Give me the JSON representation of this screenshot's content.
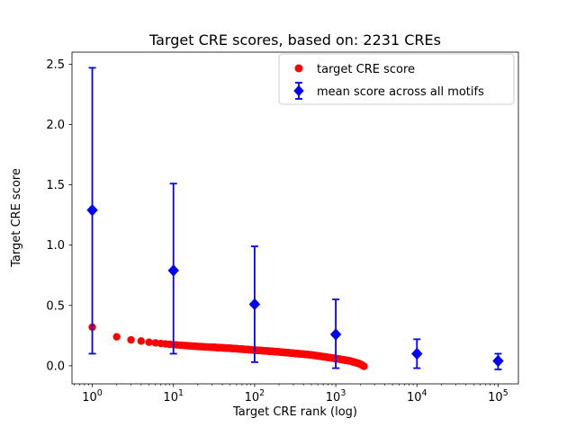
{
  "chart_data": {
    "type": "scatter",
    "title": "Target CRE scores, based on: 2231 CREs",
    "xlabel": "Target CRE rank (log)",
    "ylabel": "Target CRE score",
    "xscale": "log",
    "xlim_log": [
      -0.25,
      5.25
    ],
    "ylim": [
      -0.15,
      2.6
    ],
    "xticks": [
      1,
      10,
      100,
      1000,
      10000,
      100000
    ],
    "ytick_labels": [
      "0.0",
      "0.5",
      "1.0",
      "1.5",
      "2.0",
      "2.5"
    ],
    "grid": false,
    "legend_position": "upper right",
    "series": [
      {
        "name": "target CRE score",
        "type": "scatter",
        "marker": "circle",
        "color": "#ff0000",
        "n_points": 2231,
        "curve_anchors_rank_score": [
          [
            1,
            0.32
          ],
          [
            2,
            0.24
          ],
          [
            3,
            0.215
          ],
          [
            4,
            0.205
          ],
          [
            5,
            0.195
          ],
          [
            7,
            0.185
          ],
          [
            10,
            0.175
          ],
          [
            20,
            0.16
          ],
          [
            50,
            0.145
          ],
          [
            100,
            0.13
          ],
          [
            200,
            0.115
          ],
          [
            500,
            0.09
          ],
          [
            1000,
            0.06
          ],
          [
            1500,
            0.04
          ],
          [
            2000,
            0.015
          ],
          [
            2231,
            -0.005
          ]
        ]
      },
      {
        "name": "mean score across all motifs",
        "type": "errorbar",
        "marker": "diamond",
        "color": "#0000ff",
        "x": [
          1,
          10,
          100,
          1000,
          10000,
          100000
        ],
        "y": [
          1.29,
          0.79,
          0.51,
          0.26,
          0.1,
          0.04
        ],
        "y_low": [
          0.1,
          0.1,
          0.03,
          -0.02,
          -0.02,
          -0.03
        ],
        "y_high": [
          2.47,
          1.51,
          0.99,
          0.55,
          0.22,
          0.1
        ]
      }
    ]
  }
}
